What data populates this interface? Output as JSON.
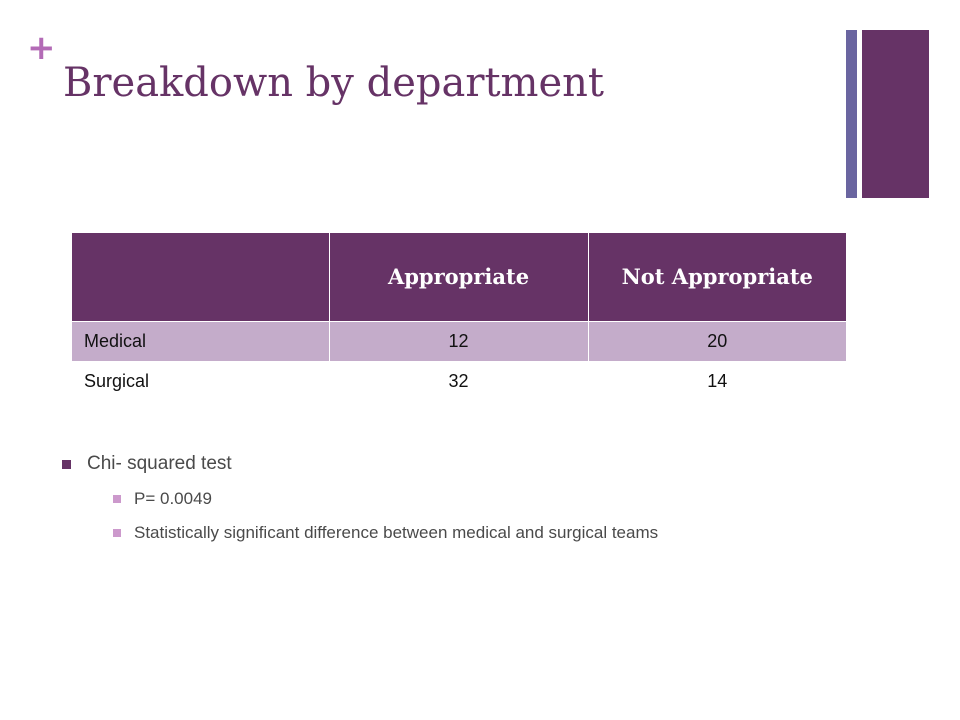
{
  "slide": {
    "plus_glyph": "+",
    "title": "Breakdown by department",
    "colors": {
      "title": "#663366",
      "accent_plus": "#b36bb6",
      "header_fill": "#663366",
      "row_alt_fill": "#c4acca",
      "accent_bar_thin": "#6a65a0",
      "bullet_main": "#663366",
      "bullet_sub": "#cc99cc"
    }
  },
  "table": {
    "headers": [
      "",
      "Appropriate",
      "Not Appropriate"
    ],
    "rows": [
      {
        "label": "Medical",
        "values": [
          "12",
          "20"
        ]
      },
      {
        "label": "Surgical",
        "values": [
          "32",
          "14"
        ]
      }
    ]
  },
  "bullets": [
    {
      "text": "Chi- squared test",
      "sub": [
        "P= 0.0049",
        "Statistically significant difference between medical and surgical teams"
      ]
    }
  ]
}
